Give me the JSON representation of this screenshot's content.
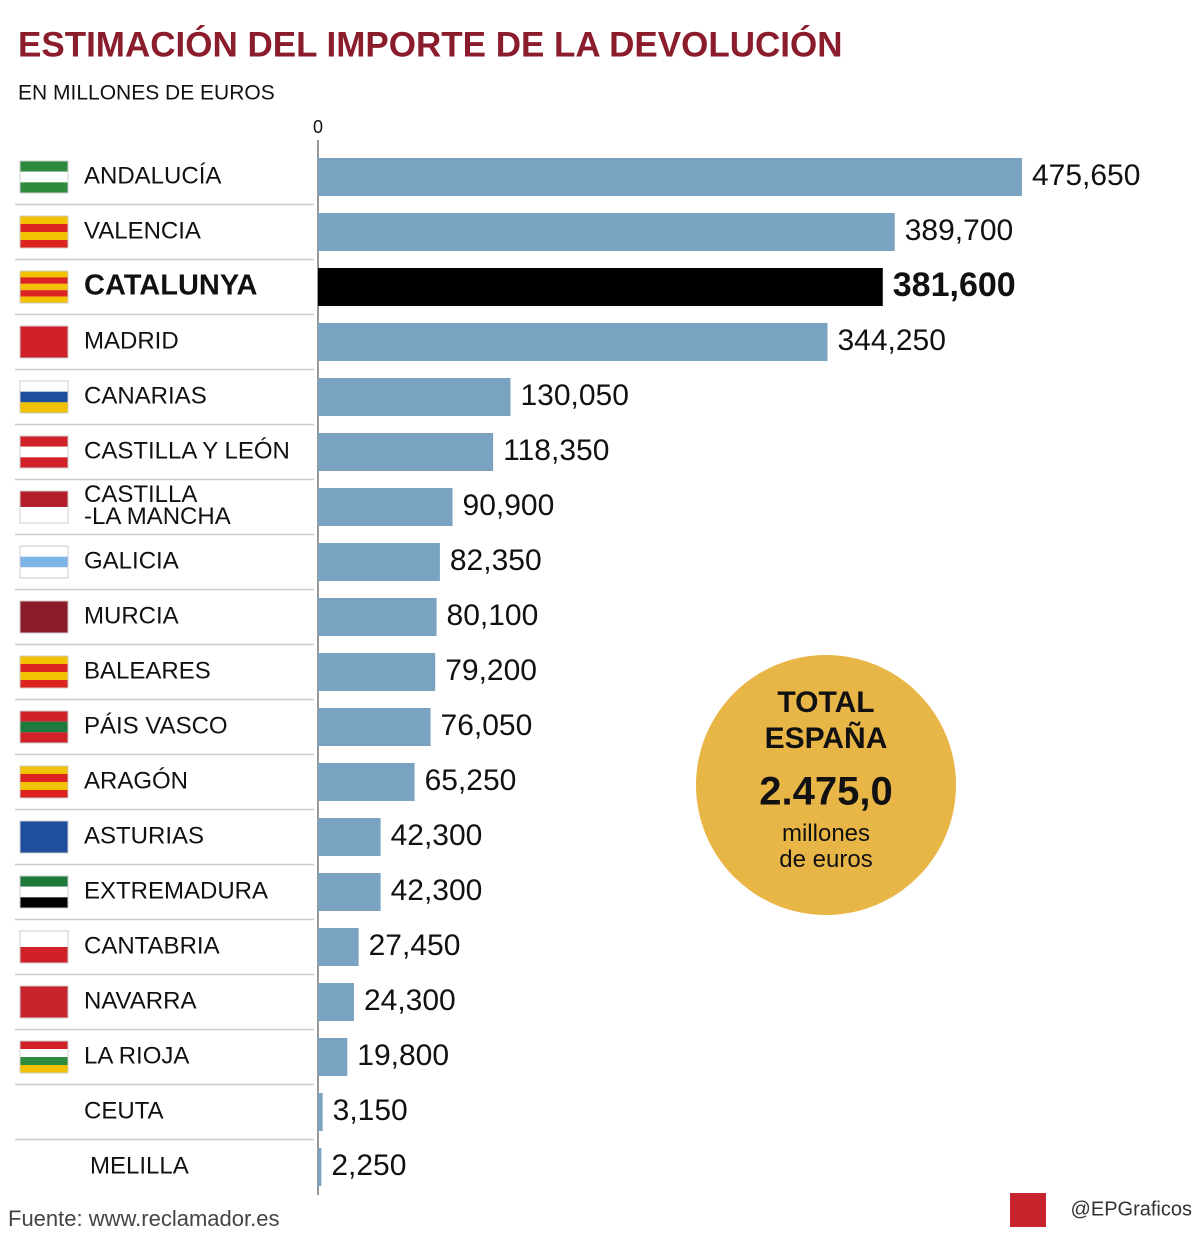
{
  "chart_data": {
    "type": "bar",
    "orientation": "horizontal",
    "title": "ESTIMACIÓN DEL IMPORTE DE LA DEVOLUCIÓN",
    "subtitle": "EN MILLONES DE EUROS",
    "categories": [
      "ANDALUCÍA",
      "VALENCIA",
      "CATALUNYA",
      "MADRID",
      "CANARIAS",
      "CASTILLA Y LEÓN",
      "CASTILLA\n-LA MANCHA",
      "GALICIA",
      "MURCIA",
      "BALEARES",
      "PÁIS VASCO",
      "ARAGÓN",
      "ASTURIAS",
      "EXTREMADURA",
      "CANTABRIA",
      "NAVARRA",
      "LA RIOJA",
      "CEUTA",
      "MELILLA"
    ],
    "values": [
      475.65,
      389.7,
      381.6,
      344.25,
      130.05,
      118.35,
      90.9,
      82.35,
      80.1,
      79.2,
      76.05,
      65.25,
      42.3,
      42.3,
      27.45,
      24.3,
      19.8,
      3.15,
      2.25
    ],
    "value_labels": [
      "475,650",
      "389,700",
      "381,600",
      "344,250",
      "130,050",
      "118,350",
      "90,900",
      "82,350",
      "80,100",
      "79,200",
      "76,050",
      "65,250",
      "42,300",
      "42,300",
      "27,450",
      "24,300",
      "19,800",
      "3,150",
      "2,250"
    ],
    "color": "#7aa3c1",
    "highlight_index": 2,
    "highlight_color": "#000000",
    "xlim": [
      0,
      550
    ],
    "xticks": [
      0
    ],
    "total": {
      "label": "TOTAL\nESPAÑA",
      "value": 2475.0,
      "value_label": "2.475,0",
      "unit": "millones\nde euros",
      "color": "#e8b547"
    },
    "source": "Fuente: www.reclamador.es",
    "credit": "@EPGraficos"
  }
}
